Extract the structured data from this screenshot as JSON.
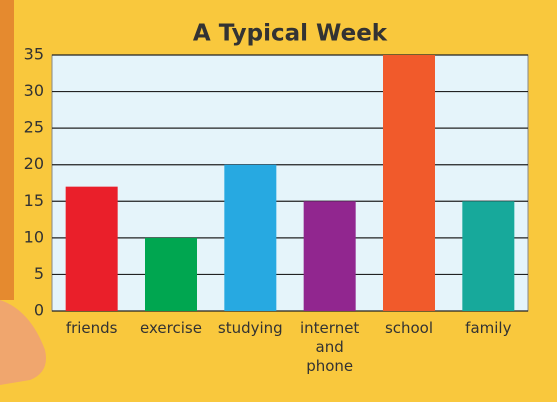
{
  "chart_data": {
    "type": "bar",
    "title": "A Typical Week",
    "categories": [
      "friends",
      "exercise",
      "studying",
      "internet and phone",
      "school",
      "family"
    ],
    "values": [
      17,
      10,
      20,
      15,
      35,
      15
    ],
    "colors": [
      "#ea1f2a",
      "#00a650",
      "#27a9e1",
      "#91268f",
      "#f15a2b",
      "#17a99b"
    ],
    "ylim": [
      0,
      35
    ],
    "yticks": [
      0,
      5,
      10,
      15,
      20,
      25,
      30,
      35
    ],
    "grid": true
  }
}
